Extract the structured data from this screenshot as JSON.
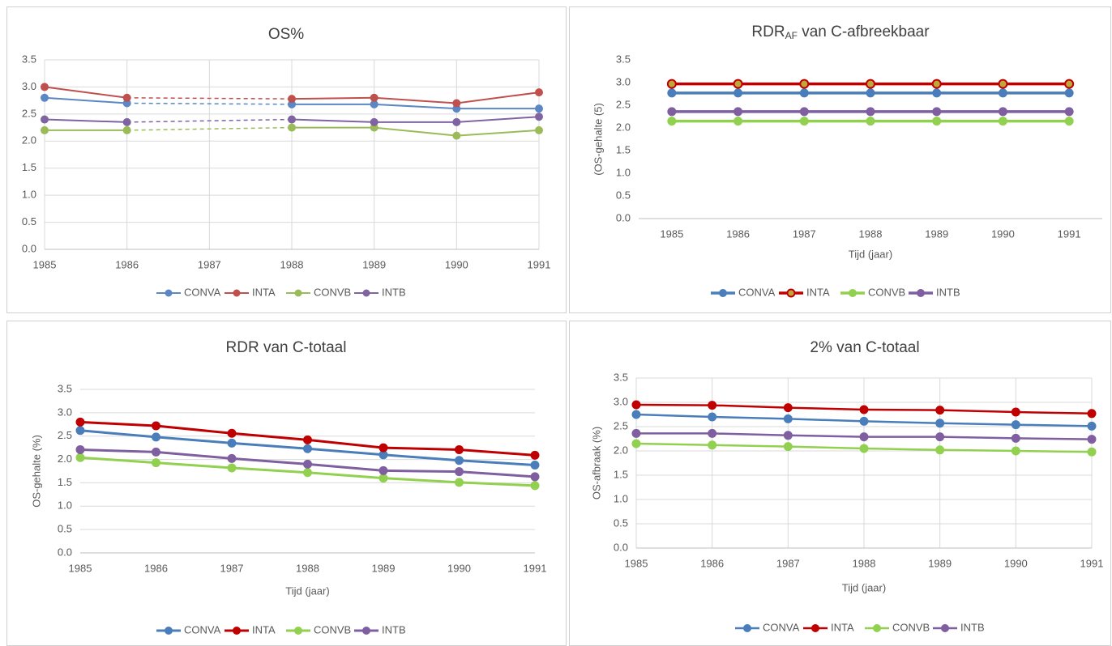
{
  "chart_data": [
    {
      "type": "line",
      "title": "OS%",
      "x": [
        1985,
        1986,
        1987,
        1988,
        1989,
        1990,
        1991
      ],
      "xlim": [
        1985,
        1991
      ],
      "xticks": [
        1985,
        1986,
        1987,
        1988,
        1989,
        1990,
        1991
      ],
      "ylim": [
        0,
        3.5
      ],
      "yticks": [
        {
          "value": 0,
          "label": "0.0"
        },
        0.5,
        {
          "value": 1,
          "label": "1.0"
        },
        1.5,
        {
          "value": 2,
          "label": "2.0"
        },
        2.5,
        {
          "value": 3,
          "label": "3.0"
        },
        3.5
      ],
      "grid": {
        "x": true,
        "y": true
      },
      "gap_style": "dashed",
      "legend": "bottom",
      "series": [
        {
          "name": "CONVA",
          "color": "#5b87c5",
          "values": [
            2.8,
            2.7,
            null,
            2.68,
            2.68,
            2.6,
            2.6
          ]
        },
        {
          "name": "INTA",
          "color": "#c0504d",
          "values": [
            3.0,
            2.8,
            null,
            2.78,
            2.8,
            2.7,
            2.9
          ]
        },
        {
          "name": "CONVB",
          "color": "#9bbb59",
          "values": [
            2.2,
            2.2,
            null,
            2.25,
            2.25,
            2.1,
            2.2
          ]
        },
        {
          "name": "INTB",
          "color": "#8064a2",
          "values": [
            2.4,
            2.35,
            null,
            2.4,
            2.35,
            2.35,
            2.45
          ]
        }
      ]
    },
    {
      "type": "line",
      "title": "RDR",
      "title_subscript": "AF",
      "title_rest": " van C-afbreekbaar",
      "y_label": "(OS-gehalte (5)",
      "x_label": "Tijd (jaar)",
      "categories": [
        "1985",
        "1986",
        "1987",
        "1988",
        "1989",
        "1990",
        "1991"
      ],
      "ylim": [
        0,
        3.5
      ],
      "yticks": [
        {
          "value": 0,
          "label": "0.0"
        },
        0.5,
        {
          "value": 1,
          "label": "1.0"
        },
        1.5,
        {
          "value": 2,
          "label": "2.0"
        },
        2.5,
        {
          "value": 3,
          "label": "3.0"
        },
        3.5
      ],
      "grid": {
        "x": false,
        "y": false
      },
      "legend": "bottom",
      "series": [
        {
          "name": "CONVA",
          "color": "#4a7ebb",
          "values": [
            2.77,
            2.77,
            2.77,
            2.77,
            2.77,
            2.77,
            2.77
          ]
        },
        {
          "name": "INTA",
          "color": "#c00000",
          "marker_fill": "#bfa73a",
          "values": [
            2.97,
            2.97,
            2.97,
            2.97,
            2.97,
            2.97,
            2.97
          ]
        },
        {
          "name": "CONVB",
          "color": "#92d050",
          "values": [
            2.15,
            2.15,
            2.15,
            2.15,
            2.15,
            2.15,
            2.15
          ]
        },
        {
          "name": "INTB",
          "color": "#7f5fa0",
          "values": [
            2.36,
            2.36,
            2.36,
            2.36,
            2.36,
            2.36,
            2.36
          ]
        }
      ]
    },
    {
      "type": "line",
      "title": "RDR van C-totaal",
      "y_label": "OS-gehalte (%)",
      "x_label": "Tijd (jaar)",
      "x": [
        1985,
        1986,
        1987,
        1988,
        1989,
        1990,
        1991
      ],
      "xlim": [
        1985,
        1991
      ],
      "xticks": [
        1985,
        1986,
        1987,
        1988,
        1989,
        1990,
        1991
      ],
      "ylim": [
        0,
        3.5
      ],
      "yticks": [
        {
          "value": 0,
          "label": "0.0"
        },
        0.5,
        {
          "value": 1,
          "label": "1.0"
        },
        1.5,
        {
          "value": 2,
          "label": "2.0"
        },
        2.5,
        {
          "value": 3,
          "label": "3.0"
        },
        3.5
      ],
      "grid": {
        "x": false,
        "y": true
      },
      "legend": "bottom",
      "series": [
        {
          "name": "CONVA",
          "color": "#4a7ebb",
          "values": [
            2.62,
            2.48,
            2.35,
            2.23,
            2.1,
            1.98,
            1.88
          ]
        },
        {
          "name": "INTA",
          "color": "#c00000",
          "values": [
            2.8,
            2.72,
            2.56,
            2.42,
            2.25,
            2.21,
            2.09
          ]
        },
        {
          "name": "CONVB",
          "color": "#92d050",
          "values": [
            2.04,
            1.93,
            1.82,
            1.72,
            1.6,
            1.51,
            1.44
          ]
        },
        {
          "name": "INTB",
          "color": "#7f5fa0",
          "values": [
            2.21,
            2.16,
            2.02,
            1.9,
            1.76,
            1.74,
            1.63
          ]
        }
      ]
    },
    {
      "type": "line",
      "title": "2% van C-totaal",
      "y_label": "OS-afbraak (%)",
      "x_label": "Tijd (jaar)",
      "x": [
        1985,
        1986,
        1987,
        1988,
        1989,
        1990,
        1991
      ],
      "xlim": [
        1985,
        1991
      ],
      "xticks": [
        1985,
        1986,
        1987,
        1988,
        1989,
        1990,
        1991
      ],
      "ylim": [
        0,
        3.5
      ],
      "yticks": [
        {
          "value": 0,
          "label": "0.0"
        },
        0.5,
        {
          "value": 1,
          "label": "1.0"
        },
        1.5,
        {
          "value": 2,
          "label": "2.0"
        },
        2.5,
        {
          "value": 3,
          "label": "3.0"
        },
        3.5
      ],
      "grid": {
        "x": true,
        "y": true
      },
      "legend": "bottom",
      "series": [
        {
          "name": "CONVA",
          "color": "#4a7ebb",
          "values": [
            2.75,
            2.7,
            2.66,
            2.61,
            2.57,
            2.54,
            2.51
          ]
        },
        {
          "name": "INTA",
          "color": "#c00000",
          "values": [
            2.95,
            2.94,
            2.89,
            2.85,
            2.84,
            2.8,
            2.77
          ]
        },
        {
          "name": "CONVB",
          "color": "#92d050",
          "values": [
            2.15,
            2.12,
            2.09,
            2.05,
            2.02,
            2.0,
            1.98
          ]
        },
        {
          "name": "INTB",
          "color": "#7f5fa0",
          "values": [
            2.36,
            2.36,
            2.32,
            2.29,
            2.29,
            2.26,
            2.24
          ]
        }
      ]
    }
  ]
}
